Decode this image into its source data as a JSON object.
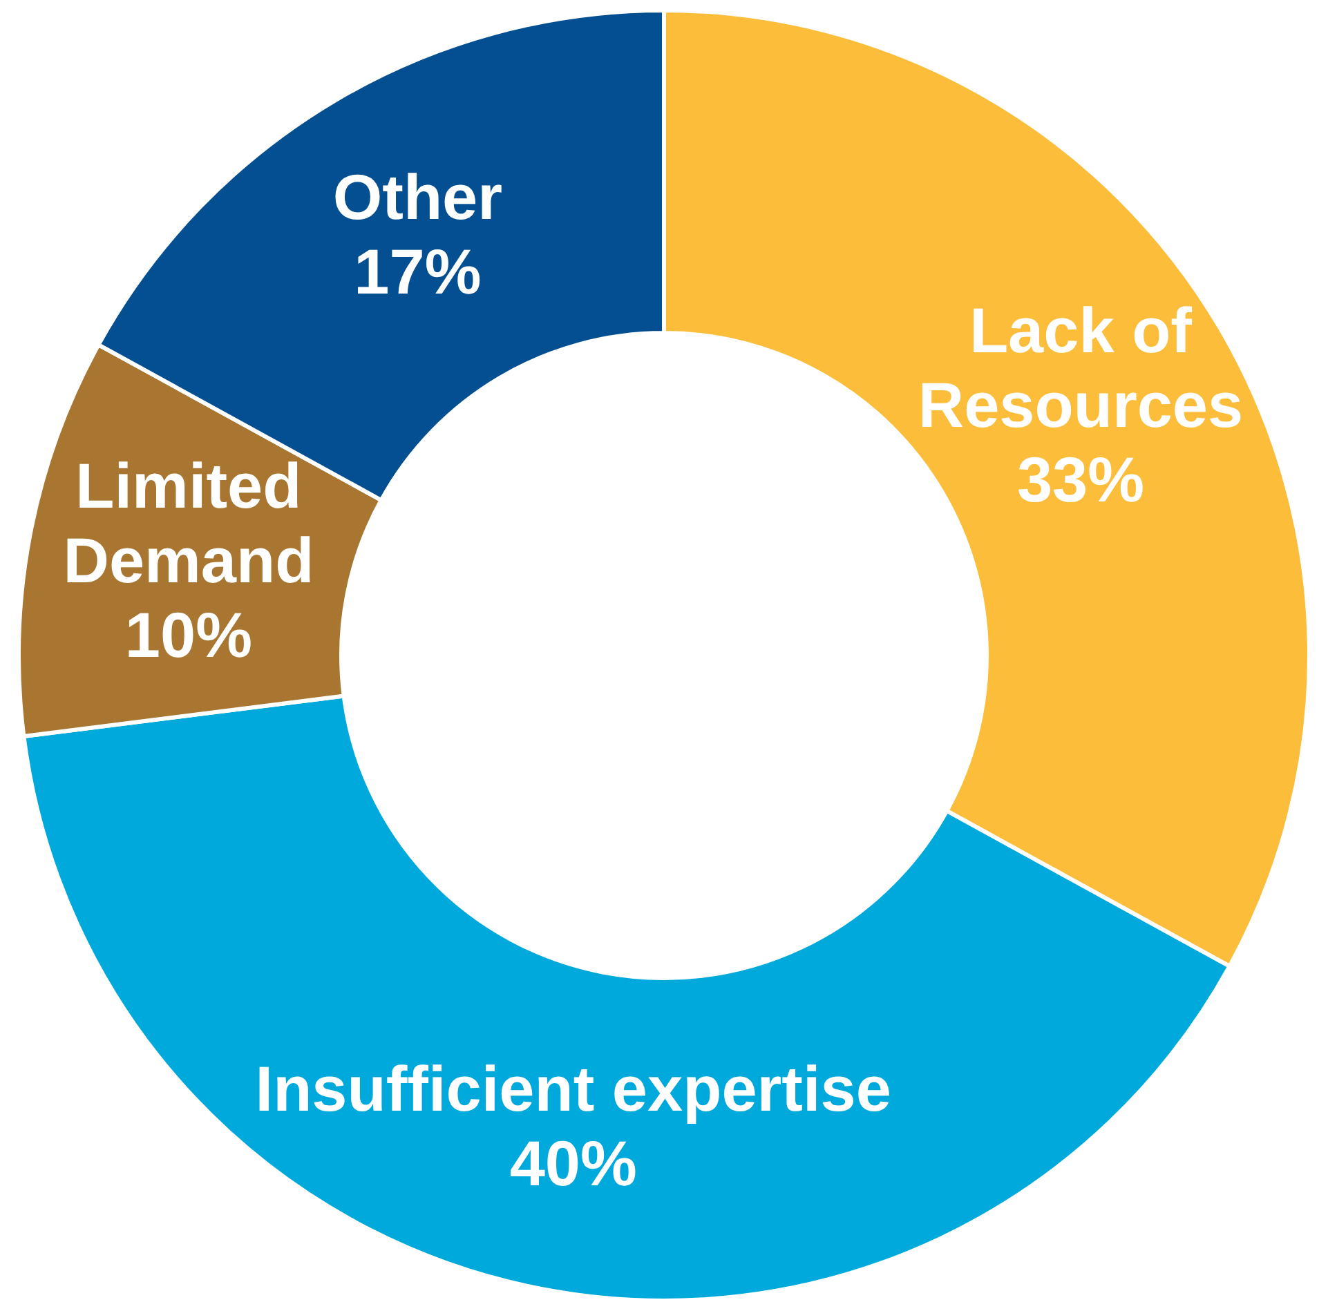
{
  "chart_data": {
    "type": "donut",
    "categories": [
      "Lack of Resources",
      "Insufficient expertise",
      "Limited Demand",
      "Other"
    ],
    "values": [
      33,
      40,
      10,
      17
    ],
    "colors": [
      "#fbbd3a",
      "#00a9dc",
      "#a87630",
      "#044f92"
    ],
    "value_labels": [
      "33%",
      "40%",
      "10%",
      "17%"
    ],
    "legend": false
  }
}
